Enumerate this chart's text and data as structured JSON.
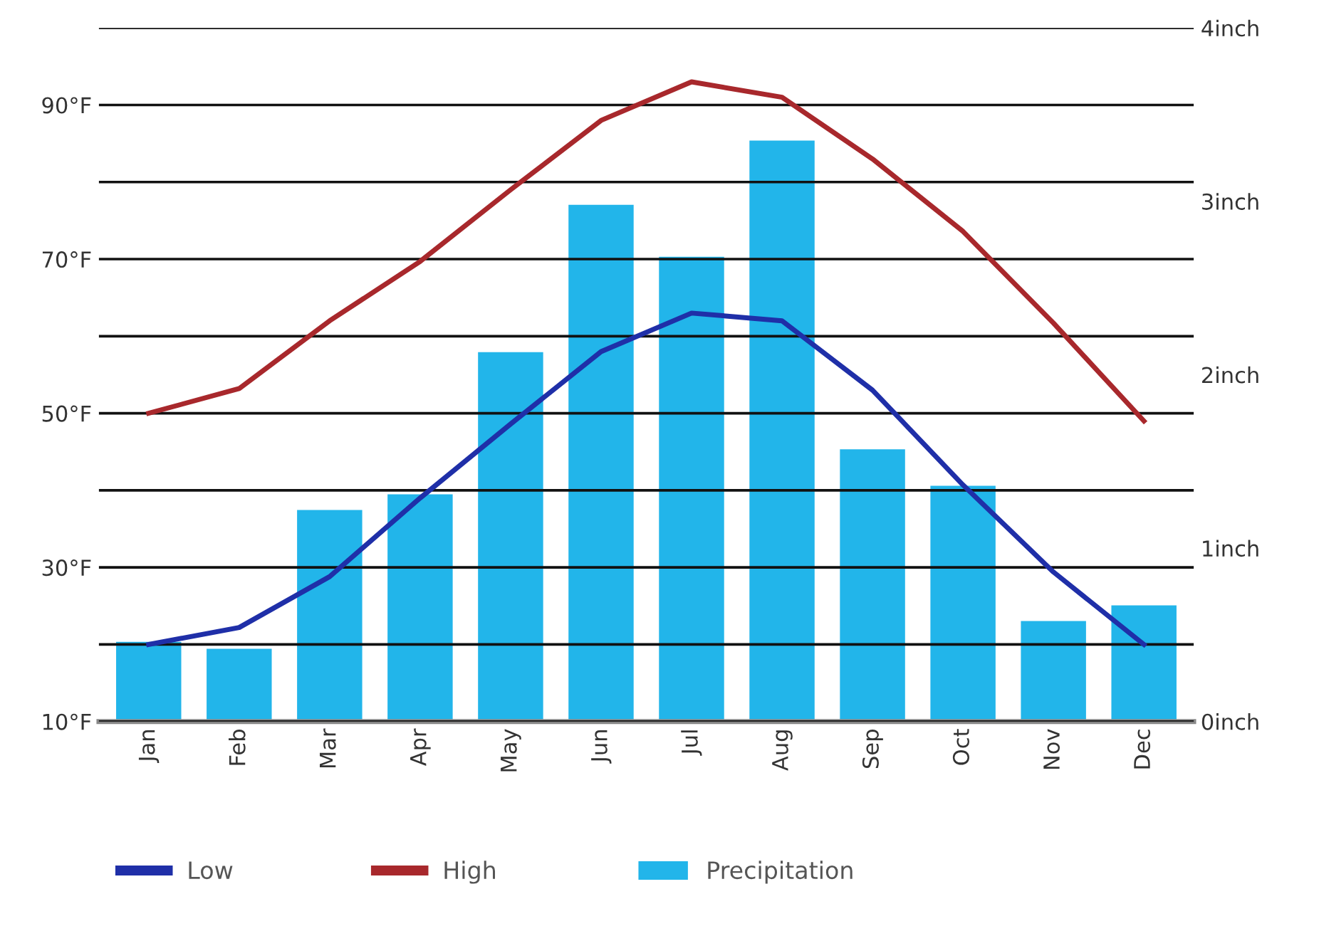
{
  "chart_data": {
    "type": "bar",
    "categories": [
      "Jan",
      "Feb",
      "Mar",
      "Apr",
      "May",
      "Jun",
      "Jul",
      "Aug",
      "Sep",
      "Oct",
      "Nov",
      "Dec"
    ],
    "series": [
      {
        "name": "Low",
        "color": "#1f2fa8",
        "type": "line",
        "values": [
          20,
          22.2,
          28.8,
          39,
          48.6,
          58,
          63,
          62,
          53,
          40.7,
          29.4,
          20
        ]
      },
      {
        "name": "High",
        "color": "#a8282c",
        "type": "line",
        "values": [
          50,
          53.2,
          62,
          69.7,
          79,
          88,
          93,
          91,
          83,
          73.6,
          61.7,
          49
        ]
      },
      {
        "name": "Precipitation",
        "color": "#22b5ea",
        "axis": "y2",
        "values": [
          0.46,
          0.42,
          1.22,
          1.31,
          2.13,
          2.98,
          2.68,
          3.35,
          1.57,
          1.36,
          0.58,
          0.67
        ]
      }
    ],
    "ylim": [
      10,
      100
    ],
    "yticks": [
      {
        "value": 10,
        "label": "10°F"
      },
      {
        "value": 20,
        "label": null
      },
      {
        "value": 30,
        "label": "30°F"
      },
      {
        "value": 40,
        "label": null
      },
      {
        "value": 50,
        "label": "50°F"
      },
      {
        "value": 60,
        "label": null
      },
      {
        "value": 70,
        "label": "70°F"
      },
      {
        "value": 80,
        "label": null
      },
      {
        "value": 90,
        "label": "90°F"
      },
      {
        "value": 100,
        "label": null
      }
    ],
    "y2lim": [
      0,
      4
    ],
    "y2ticks": [
      {
        "value": 0,
        "label": "0inch"
      },
      {
        "value": 1,
        "label": "1inch"
      },
      {
        "value": 2,
        "label": "2inch"
      },
      {
        "value": 3,
        "label": "3inch"
      },
      {
        "value": 4,
        "label": "4inch"
      }
    ],
    "grid": "y",
    "legend": "bottom",
    "marker": "none",
    "line_style": "solid"
  }
}
